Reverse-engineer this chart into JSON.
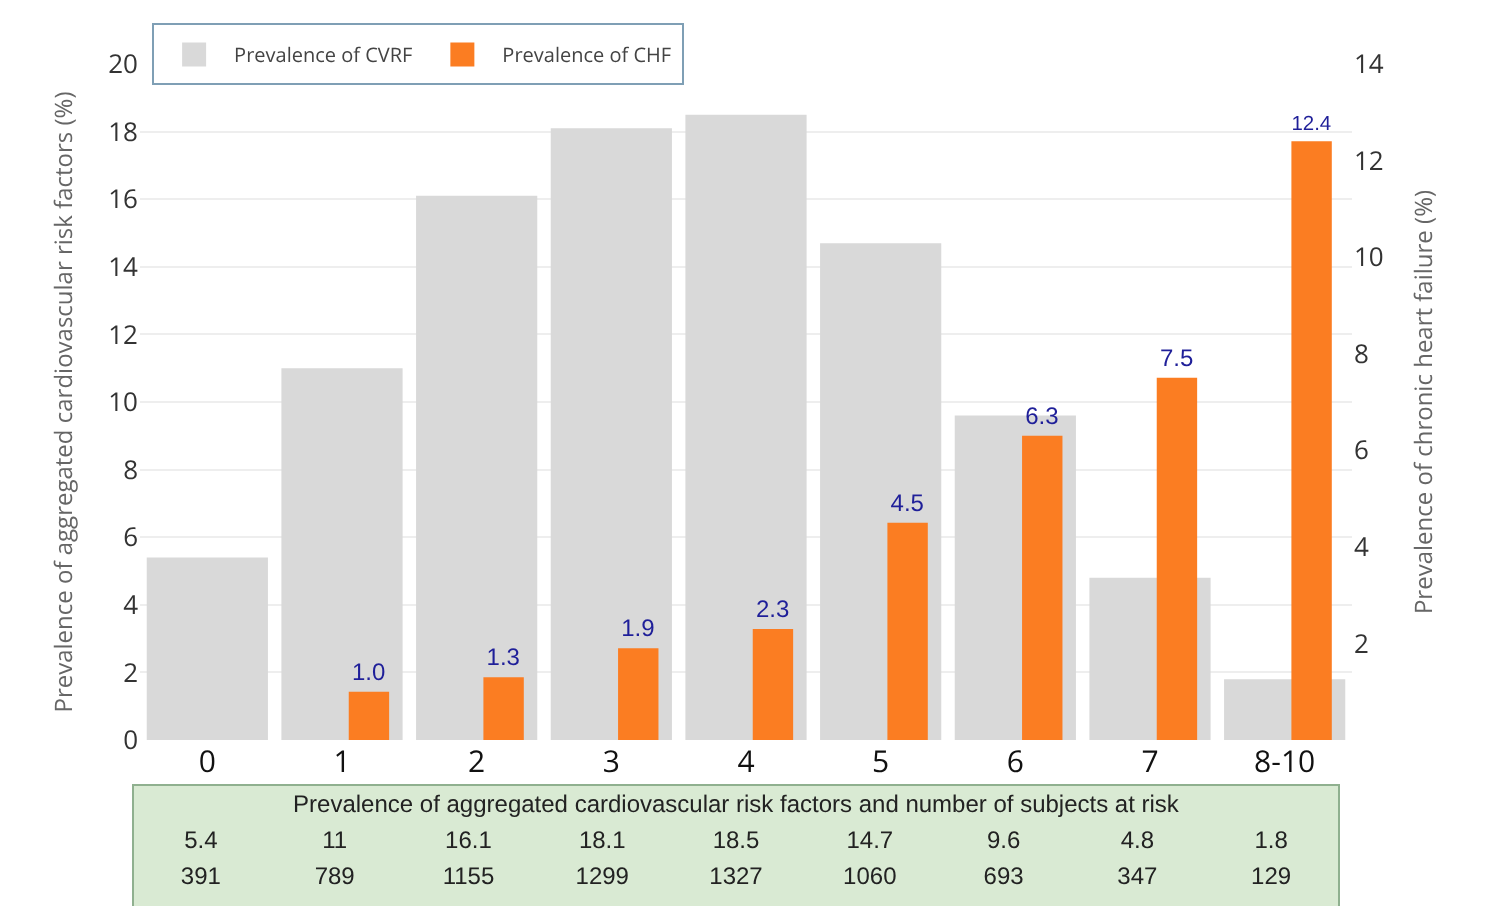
{
  "chart_data": {
    "type": "bar",
    "ylabel": "Prevalence of aggregated cardiovascular risk factors (%)",
    "y2label": "Prevalence of chronic heart failure (%)",
    "categories": [
      "0",
      "1",
      "2",
      "3",
      "4",
      "5",
      "6",
      "7",
      "8-10"
    ],
    "series": [
      {
        "name": "Prevalence of CVRF",
        "color": "#d9d9d9",
        "values": [
          5.4,
          11,
          16.1,
          18.1,
          18.5,
          14.7,
          9.6,
          4.8,
          1.8
        ],
        "value_labels": [
          "5.4",
          "11",
          "16.1",
          "18.1",
          "18.5",
          "14.7",
          "9.6",
          "4.8",
          "1.8"
        ]
      },
      {
        "name": "Prevalence of CHF",
        "color": "#fb7d22",
        "axis": "y2",
        "values": [
          null,
          1.0,
          1.3,
          1.9,
          2.3,
          4.5,
          6.3,
          7.5,
          12.4
        ],
        "value_labels": [
          null,
          "1.0",
          "1.3",
          "1.9",
          "2.3",
          "4.5",
          "6.3",
          "7.5",
          "12.4"
        ]
      }
    ],
    "ylim": [
      0,
      20
    ],
    "yticks": [
      0,
      2,
      4,
      6,
      8,
      10,
      12,
      14,
      16,
      18,
      20
    ],
    "y2lim": [
      0,
      14
    ],
    "y2ticks": [
      2,
      4,
      6,
      8,
      10,
      12,
      14
    ],
    "grid": "y",
    "legend": "top left",
    "annotations": [
      "Prevalence of aggregated cardiovascular risk factors and number of subjects at risk",
      "391",
      "789",
      "1155",
      "1299",
      "1327",
      "1060",
      "693",
      "347",
      "129"
    ]
  }
}
